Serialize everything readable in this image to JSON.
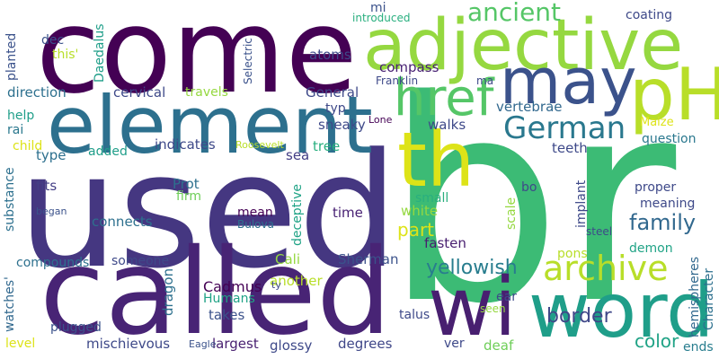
{
  "words": [
    {
      "id": "used",
      "text": "used",
      "color": "#453781"
    },
    {
      "id": "br",
      "text": "br",
      "color": "#3cbb75"
    },
    {
      "id": "come",
      "text": "come",
      "color": "#440154"
    },
    {
      "id": "called",
      "text": "called",
      "color": "#482475"
    },
    {
      "id": "element",
      "text": "element",
      "color": "#2d708e"
    },
    {
      "id": "adjective",
      "text": "adjective",
      "color": "#95d840"
    },
    {
      "id": "word",
      "text": "word",
      "color": "#1f9e89"
    },
    {
      "id": "wi",
      "text": "wi",
      "color": "#481f70"
    },
    {
      "id": "pH",
      "text": "pH",
      "color": "#b8de29"
    },
    {
      "id": "may",
      "text": "may",
      "color": "#3b528b"
    },
    {
      "id": "th",
      "text": "th",
      "color": "#dde318"
    },
    {
      "id": "href",
      "text": "href",
      "color": "#55c667"
    },
    {
      "id": "archive",
      "text": "archive",
      "color": "#b8de29"
    },
    {
      "id": "German",
      "text": "German",
      "color": "#2a788e"
    },
    {
      "id": "ancient",
      "text": "ancient",
      "color": "#55c667"
    },
    {
      "id": "family",
      "text": "family",
      "color": "#31688e"
    },
    {
      "id": "yellowish",
      "text": "yellowish",
      "color": "#287d8e"
    },
    {
      "id": "border",
      "text": "border",
      "color": "#3f4788"
    },
    {
      "id": "color",
      "text": "color",
      "color": "#20a386"
    },
    {
      "id": "part",
      "text": "part",
      "color": "#dde318"
    },
    {
      "id": "Cadmus",
      "text": "Cadmus",
      "color": "#440154"
    },
    {
      "id": "Sherman",
      "text": "Sherman",
      "color": "#3b528b"
    },
    {
      "id": "Humans",
      "text": "Humans",
      "color": "#20a386"
    },
    {
      "id": "Cali",
      "text": "Cali",
      "color": "#95d840"
    },
    {
      "id": "takes",
      "text": "takes",
      "color": "#3b528b"
    },
    {
      "id": "glossy",
      "text": "glossy",
      "color": "#3e4989"
    },
    {
      "id": "mischievous",
      "text": "mischievous",
      "color": "#3e4989"
    },
    {
      "id": "largest",
      "text": "largest",
      "color": "#481f70"
    },
    {
      "id": "Eagle",
      "text": "Eagle",
      "color": "#3b528b"
    },
    {
      "id": "degrees",
      "text": "degrees",
      "color": "#3f4788"
    },
    {
      "id": "ver",
      "text": "ver",
      "color": "#3e4989"
    },
    {
      "id": "deaf",
      "text": "deaf",
      "color": "#6ece58"
    },
    {
      "id": "ends",
      "text": "ends",
      "color": "#287d8e"
    },
    {
      "id": "level",
      "text": "level",
      "color": "#dde318"
    },
    {
      "id": "plugged",
      "text": "plugged",
      "color": "#3b528b"
    },
    {
      "id": "someone",
      "text": "someone",
      "color": "#3e4989"
    },
    {
      "id": "compounds",
      "text": "compounds",
      "color": "#2d708e"
    },
    {
      "id": "connects",
      "text": "connects",
      "color": "#2d708e"
    },
    {
      "id": "fasten",
      "text": "fasten",
      "color": "#481f70"
    },
    {
      "id": "time",
      "text": "time",
      "color": "#482173"
    },
    {
      "id": "white",
      "text": "white",
      "color": "#95d840"
    },
    {
      "id": "small",
      "text": "small",
      "color": "#29af7f"
    },
    {
      "id": "another",
      "text": "another",
      "color": "#b8de29"
    },
    {
      "id": "mean",
      "text": "mean",
      "color": "#440154"
    },
    {
      "id": "Bulova",
      "text": "Bulova",
      "color": "#2d708e"
    },
    {
      "id": "Prot",
      "text": "Prot",
      "color": "#2d708e"
    },
    {
      "id": "firm",
      "text": "firm",
      "color": "#6ece58"
    },
    {
      "id": "sea",
      "text": "sea",
      "color": "#433e85"
    },
    {
      "id": "tree",
      "text": "tree",
      "color": "#29af7f"
    },
    {
      "id": "Roosevelt",
      "text": "Roosevelt",
      "color": "#b8de29"
    },
    {
      "id": "indicates",
      "text": "indicates",
      "color": "#3e4989"
    },
    {
      "id": "added",
      "text": "added",
      "color": "#1f9e89"
    },
    {
      "id": "type",
      "text": "type",
      "color": "#2d708e"
    },
    {
      "id": "child",
      "text": "child",
      "color": "#dde318"
    },
    {
      "id": "fits",
      "text": "fits",
      "color": "#433e85"
    },
    {
      "id": "began",
      "text": "began",
      "color": "#3b528b"
    },
    {
      "id": "travels",
      "text": "travels",
      "color": "#95d840"
    },
    {
      "id": "cervical",
      "text": "cervical",
      "color": "#3e4989"
    },
    {
      "id": "direction",
      "text": "direction",
      "color": "#2d708e"
    },
    {
      "id": "help",
      "text": "help",
      "color": "#1f9e89"
    },
    {
      "id": "rai",
      "text": "rai",
      "color": "#2a788e"
    },
    {
      "id": "this",
      "text": "this'",
      "color": "#b8de29"
    },
    {
      "id": "dec",
      "text": "dec",
      "color": "#3b528b"
    },
    {
      "id": "atoms",
      "text": "atoms",
      "color": "#3e4989"
    },
    {
      "id": "compass",
      "text": "compass",
      "color": "#482173"
    },
    {
      "id": "General",
      "text": "General",
      "color": "#3e4989"
    },
    {
      "id": "typ",
      "text": "typ",
      "color": "#3e4989"
    },
    {
      "id": "sneaky",
      "text": "sneaky",
      "color": "#3e4989"
    },
    {
      "id": "walks",
      "text": "walks",
      "color": "#3e4989"
    },
    {
      "id": "Lone",
      "text": "Lone",
      "color": "#440154"
    },
    {
      "id": "Franklin",
      "text": "Franklin",
      "color": "#3e4989"
    },
    {
      "id": "introduced",
      "text": "introduced",
      "color": "#29af7f"
    },
    {
      "id": "mi",
      "text": "mi",
      "color": "#3b528b"
    },
    {
      "id": "coating",
      "text": "coating",
      "color": "#3e4989"
    },
    {
      "id": "ma",
      "text": "ma",
      "color": "#3e4989"
    },
    {
      "id": "vertebrae",
      "text": "vertebrae",
      "color": "#31688e"
    },
    {
      "id": "Maize",
      "text": "Maize",
      "color": "#dde318"
    },
    {
      "id": "question",
      "text": "question",
      "color": "#2a788e"
    },
    {
      "id": "teeth",
      "text": "teeth",
      "color": "#3e4989"
    },
    {
      "id": "proper",
      "text": "proper",
      "color": "#3e4989"
    },
    {
      "id": "meaning",
      "text": "meaning",
      "color": "#3e4989"
    },
    {
      "id": "bo",
      "text": "bo",
      "color": "#3e4989"
    },
    {
      "id": "steel",
      "text": "steel",
      "color": "#3e4989"
    },
    {
      "id": "pons",
      "text": "pons",
      "color": "#b8de29"
    },
    {
      "id": "demon",
      "text": "demon",
      "color": "#20a386"
    },
    {
      "id": "talus",
      "text": "talus",
      "color": "#3e4989"
    },
    {
      "id": "ear",
      "text": "ear",
      "color": "#3e4989"
    },
    {
      "id": "seen",
      "text": "seen",
      "color": "#95d840"
    },
    {
      "id": "ty",
      "text": "ty",
      "color": "#3e4989"
    },
    {
      "id": "dragon",
      "text": "dragon",
      "color": "#2d708e"
    },
    {
      "id": "substance",
      "text": "substance",
      "color": "#2d708e"
    },
    {
      "id": "planted",
      "text": "planted",
      "color": "#3b528b"
    },
    {
      "id": "Daedalus",
      "text": "Daedalus",
      "color": "#1f9e89"
    },
    {
      "id": "Selectric",
      "text": "Selectric",
      "color": "#3b528b"
    },
    {
      "id": "deceptive",
      "text": "deceptive",
      "color": "#20a386"
    },
    {
      "id": "scale",
      "text": "scale",
      "color": "#95d840"
    },
    {
      "id": "implant",
      "text": "implant",
      "color": "#3e4989"
    },
    {
      "id": "hemispheres",
      "text": "hemispheres",
      "color": "#31688e"
    },
    {
      "id": "Character",
      "text": "Character",
      "color": "#2d708e"
    },
    {
      "id": "watches",
      "text": "watches'",
      "color": "#31688e"
    }
  ]
}
